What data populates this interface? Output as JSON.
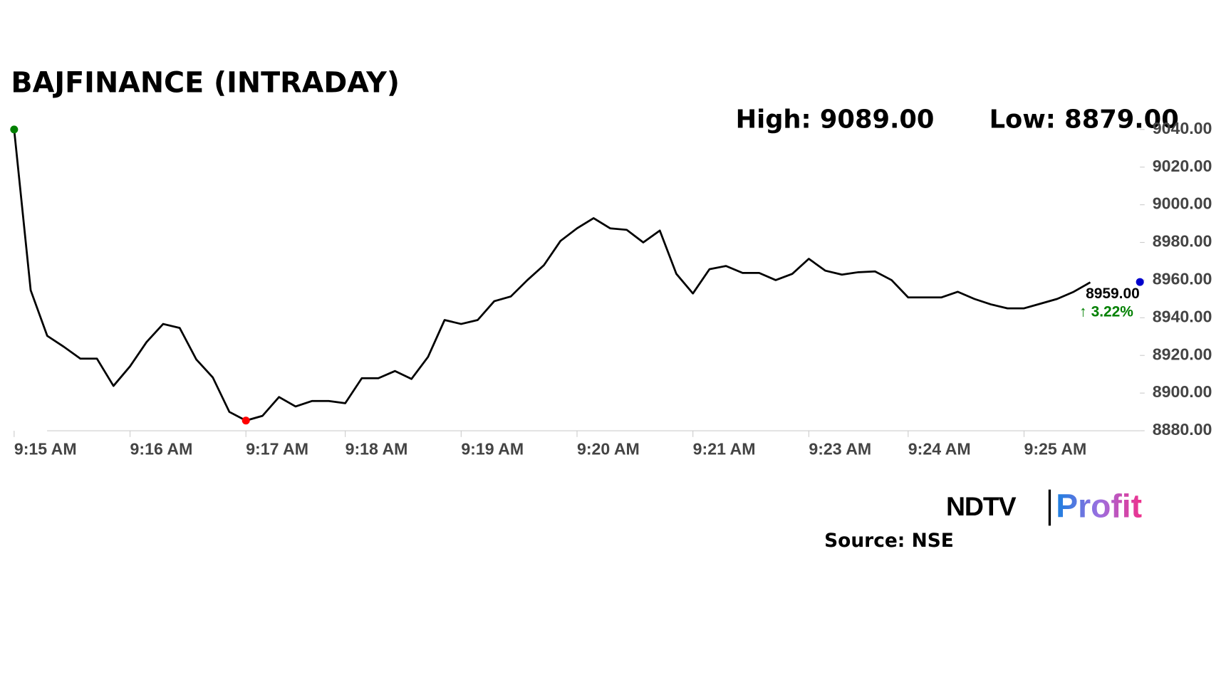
{
  "chart_data": {
    "type": "line",
    "title": "BAJFINANCE (INTRADAY)",
    "high_label": "High: 9089.00",
    "low_label": "Low: 8879.00",
    "last_label": "8959.00",
    "change_label": "↑ 3.22%",
    "change_color": "#008000",
    "categories": [
      "9:15 AM",
      null,
      null,
      null,
      null,
      null,
      null,
      "9:16 AM",
      null,
      null,
      null,
      null,
      null,
      null,
      "9:17 AM",
      null,
      null,
      null,
      null,
      null,
      "9:18 AM",
      null,
      null,
      null,
      null,
      null,
      null,
      "9:19 AM",
      null,
      null,
      null,
      null,
      null,
      null,
      "9:20 AM",
      null,
      null,
      null,
      null,
      null,
      null,
      "9:21 AM",
      null,
      null,
      null,
      null,
      null,
      null,
      "9:23 AM",
      null,
      null,
      null,
      null,
      null,
      "9:24 AM",
      null,
      null,
      null,
      null,
      null,
      null,
      "9:25 AM",
      null,
      null,
      null,
      null,
      null,
      null,
      null
    ],
    "series": [
      {
        "name": "BAJFINANCE",
        "color": "#000000",
        "values": [
          9040,
          8954.6,
          8930.4,
          8924.6,
          8918.3,
          8918.3,
          8903.8,
          8914.2,
          8927.1,
          8936.7,
          8934.6,
          8917.9,
          8908.3,
          8890,
          8885.4,
          8887.9,
          8897.9,
          8892.9,
          8895.8,
          8895.8,
          8894.6,
          8907.9,
          8907.9,
          8911.7,
          8907.5,
          8919.2,
          8938.8,
          8936.7,
          8938.8,
          8948.8,
          8951.3,
          8960,
          8967.9,
          8980.8,
          8987.5,
          8992.9,
          8987.5,
          8986.7,
          8980,
          8986.3,
          8963.3,
          8952.9,
          8965.8,
          8967.5,
          8963.8,
          8963.8,
          8960,
          8963.3,
          8971.3,
          8965,
          8962.9,
          8964.2,
          8964.6,
          8960,
          8950.8,
          8950.8,
          8950.8,
          8953.8,
          8950,
          8947.1,
          8945,
          8945,
          8947.5,
          8950,
          8953.8,
          8958.8,
          null,
          null,
          8959
        ]
      }
    ],
    "markers": [
      {
        "index": 0,
        "color": "#008000"
      },
      {
        "index": 14,
        "color": "#ff0000"
      },
      {
        "index": 68,
        "color": "#0000cc"
      }
    ],
    "ylim": [
      8880,
      9040
    ],
    "yticks": [
      {
        "value": 8880,
        "label": "8880.00"
      },
      {
        "value": 8900,
        "label": "8900.00"
      },
      {
        "value": 8920,
        "label": "8920.00"
      },
      {
        "value": 8940,
        "label": "8940.00"
      },
      {
        "value": 8960,
        "label": "8960.00"
      },
      {
        "value": 8980,
        "label": "8980.00"
      },
      {
        "value": 9000,
        "label": "9000.00"
      },
      {
        "value": 9020,
        "label": "9020.00"
      },
      {
        "value": 9040,
        "label": "9040.00"
      }
    ]
  },
  "branding": {
    "logo_left": "NDTV",
    "logo_right": "Profit",
    "source": "Source: NSE"
  }
}
